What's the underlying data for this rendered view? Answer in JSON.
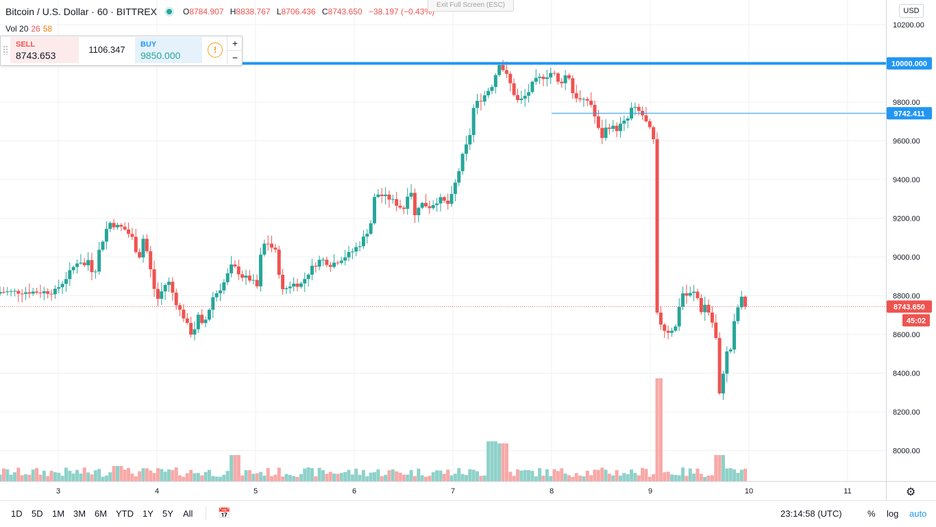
{
  "header": {
    "symbol": "Bitcoin / U.S. Dollar",
    "interval": "60",
    "exchange": "BITTREX",
    "o_label": "O",
    "o_value": "8784.907",
    "h_label": "H",
    "h_value": "8838.767",
    "l_label": "L",
    "l_value": "8706.436",
    "c_label": "C",
    "c_value": "8743.650",
    "change": "−38.197 (−0.43%)"
  },
  "volume_legend": {
    "label": "Vol 20",
    "v1": "26",
    "v2": "58"
  },
  "exit_fullscreen": "Exit Full Screen (ESC)",
  "trade_panel": {
    "sell_label": "SELL",
    "sell_price": "8743.653",
    "spread": "1106.347",
    "buy_label": "BUY",
    "buy_price": "9850.000",
    "info_icon": "!",
    "plus": "+",
    "minus": "−"
  },
  "currency": "USD",
  "price_tags": {
    "line_10000": "10000.000",
    "line_9742": "9742.411",
    "current": "8743.650",
    "countdown": "45:02"
  },
  "bottom": {
    "timeframes": [
      "1D",
      "5D",
      "1M",
      "3M",
      "6M",
      "YTD",
      "1Y",
      "5Y",
      "All"
    ],
    "time": "23:14:58 (UTC)",
    "percent": "%",
    "log": "log",
    "auto": "auto"
  },
  "colors": {
    "up": "#26a69a",
    "down": "#ef5350",
    "hline": "#2196f3",
    "upVol": "#8ed1c9",
    "downVol": "#f7a9a7"
  },
  "chart_data": {
    "type": "candlestick",
    "title": "Bitcoin / U.S. Dollar · 60 · BITTREX",
    "y_ticks": [
      10200,
      10000,
      9800,
      9600,
      9400,
      9200,
      9000,
      8800,
      8600,
      8400,
      8200,
      8000
    ],
    "x_ticks": [
      "3",
      "4",
      "5",
      "6",
      "7",
      "8",
      "9",
      "10",
      "11"
    ],
    "ylim": [
      7850,
      10300
    ],
    "horizontal_lines": [
      10000,
      9742.411
    ],
    "current_price": 8743.65,
    "path": [
      [
        0,
        8820
      ],
      [
        0.1,
        8880
      ],
      [
        0.25,
        8990
      ],
      [
        0.3,
        8950
      ],
      [
        0.33,
        9000
      ],
      [
        0.4,
        8900
      ],
      [
        0.45,
        9030
      ],
      [
        0.55,
        9180
      ],
      [
        0.62,
        9160
      ],
      [
        0.7,
        9150
      ],
      [
        0.8,
        9090
      ],
      [
        0.85,
        8980
      ],
      [
        0.9,
        9100
      ],
      [
        0.95,
        9000
      ],
      [
        1.0,
        8850
      ],
      [
        1.05,
        8780
      ],
      [
        1.1,
        8840
      ],
      [
        1.15,
        8880
      ],
      [
        1.2,
        8810
      ],
      [
        1.25,
        8740
      ],
      [
        1.3,
        8700
      ],
      [
        1.35,
        8640
      ],
      [
        1.4,
        8590
      ],
      [
        1.45,
        8700
      ],
      [
        1.5,
        8640
      ],
      [
        1.55,
        8700
      ],
      [
        1.6,
        8790
      ],
      [
        1.7,
        8850
      ],
      [
        1.8,
        8960
      ],
      [
        1.9,
        8900
      ],
      [
        2.0,
        8880
      ],
      [
        2.05,
        8840
      ],
      [
        2.1,
        9050
      ],
      [
        2.15,
        9080
      ],
      [
        2.25,
        9020
      ],
      [
        2.3,
        8820
      ],
      [
        2.4,
        8860
      ],
      [
        2.5,
        8860
      ],
      [
        2.6,
        8940
      ],
      [
        2.7,
        8990
      ],
      [
        2.8,
        8960
      ],
      [
        2.9,
        8990
      ],
      [
        3.0,
        9020
      ],
      [
        3.1,
        9070
      ],
      [
        3.2,
        9160
      ],
      [
        3.25,
        9330
      ],
      [
        3.3,
        9320
      ],
      [
        3.4,
        9300
      ],
      [
        3.5,
        9260
      ],
      [
        3.55,
        9250
      ],
      [
        3.6,
        9390
      ],
      [
        3.65,
        9210
      ],
      [
        3.7,
        9280
      ],
      [
        3.8,
        9260
      ],
      [
        3.9,
        9300
      ],
      [
        4.0,
        9270
      ],
      [
        4.1,
        9450
      ],
      [
        4.15,
        9550
      ],
      [
        4.2,
        9600
      ],
      [
        4.25,
        9780
      ],
      [
        4.35,
        9830
      ],
      [
        4.45,
        9900
      ],
      [
        4.5,
        10010
      ],
      [
        4.6,
        9920
      ],
      [
        4.65,
        9850
      ],
      [
        4.7,
        9800
      ],
      [
        4.75,
        9820
      ],
      [
        4.8,
        9850
      ],
      [
        4.85,
        9900
      ],
      [
        4.9,
        9920
      ],
      [
        5.0,
        9940
      ],
      [
        5.05,
        9960
      ],
      [
        5.1,
        9900
      ],
      [
        5.15,
        9910
      ],
      [
        5.2,
        9960
      ],
      [
        5.25,
        9850
      ],
      [
        5.3,
        9820
      ],
      [
        5.35,
        9800
      ],
      [
        5.4,
        9810
      ],
      [
        5.45,
        9780
      ],
      [
        5.5,
        9670
      ],
      [
        5.55,
        9620
      ],
      [
        5.6,
        9680
      ],
      [
        5.7,
        9660
      ],
      [
        5.75,
        9690
      ],
      [
        5.8,
        9700
      ],
      [
        5.85,
        9770
      ],
      [
        5.9,
        9760
      ],
      [
        5.95,
        9740
      ],
      [
        6.0,
        9690
      ],
      [
        6.05,
        9640
      ],
      [
        6.07,
        9600
      ],
      [
        6.08,
        9550
      ],
      [
        6.09,
        8720
      ],
      [
        6.15,
        8650
      ],
      [
        6.2,
        8610
      ],
      [
        6.3,
        8640
      ],
      [
        6.35,
        8820
      ],
      [
        6.4,
        8800
      ],
      [
        6.5,
        8820
      ],
      [
        6.55,
        8720
      ],
      [
        6.6,
        8760
      ],
      [
        6.65,
        8680
      ],
      [
        6.7,
        8620
      ],
      [
        6.72,
        8260
      ],
      [
        6.75,
        8300
      ],
      [
        6.8,
        8500
      ],
      [
        6.85,
        8520
      ],
      [
        6.9,
        8700
      ],
      [
        6.95,
        8780
      ],
      [
        6.98,
        8790
      ],
      [
        7.0,
        8744
      ]
    ],
    "volume_spikes": [
      [
        0.6,
        22
      ],
      [
        1.8,
        38
      ],
      [
        4.4,
        58
      ],
      [
        4.5,
        55
      ],
      [
        6.09,
        150
      ],
      [
        6.7,
        38
      ]
    ]
  }
}
